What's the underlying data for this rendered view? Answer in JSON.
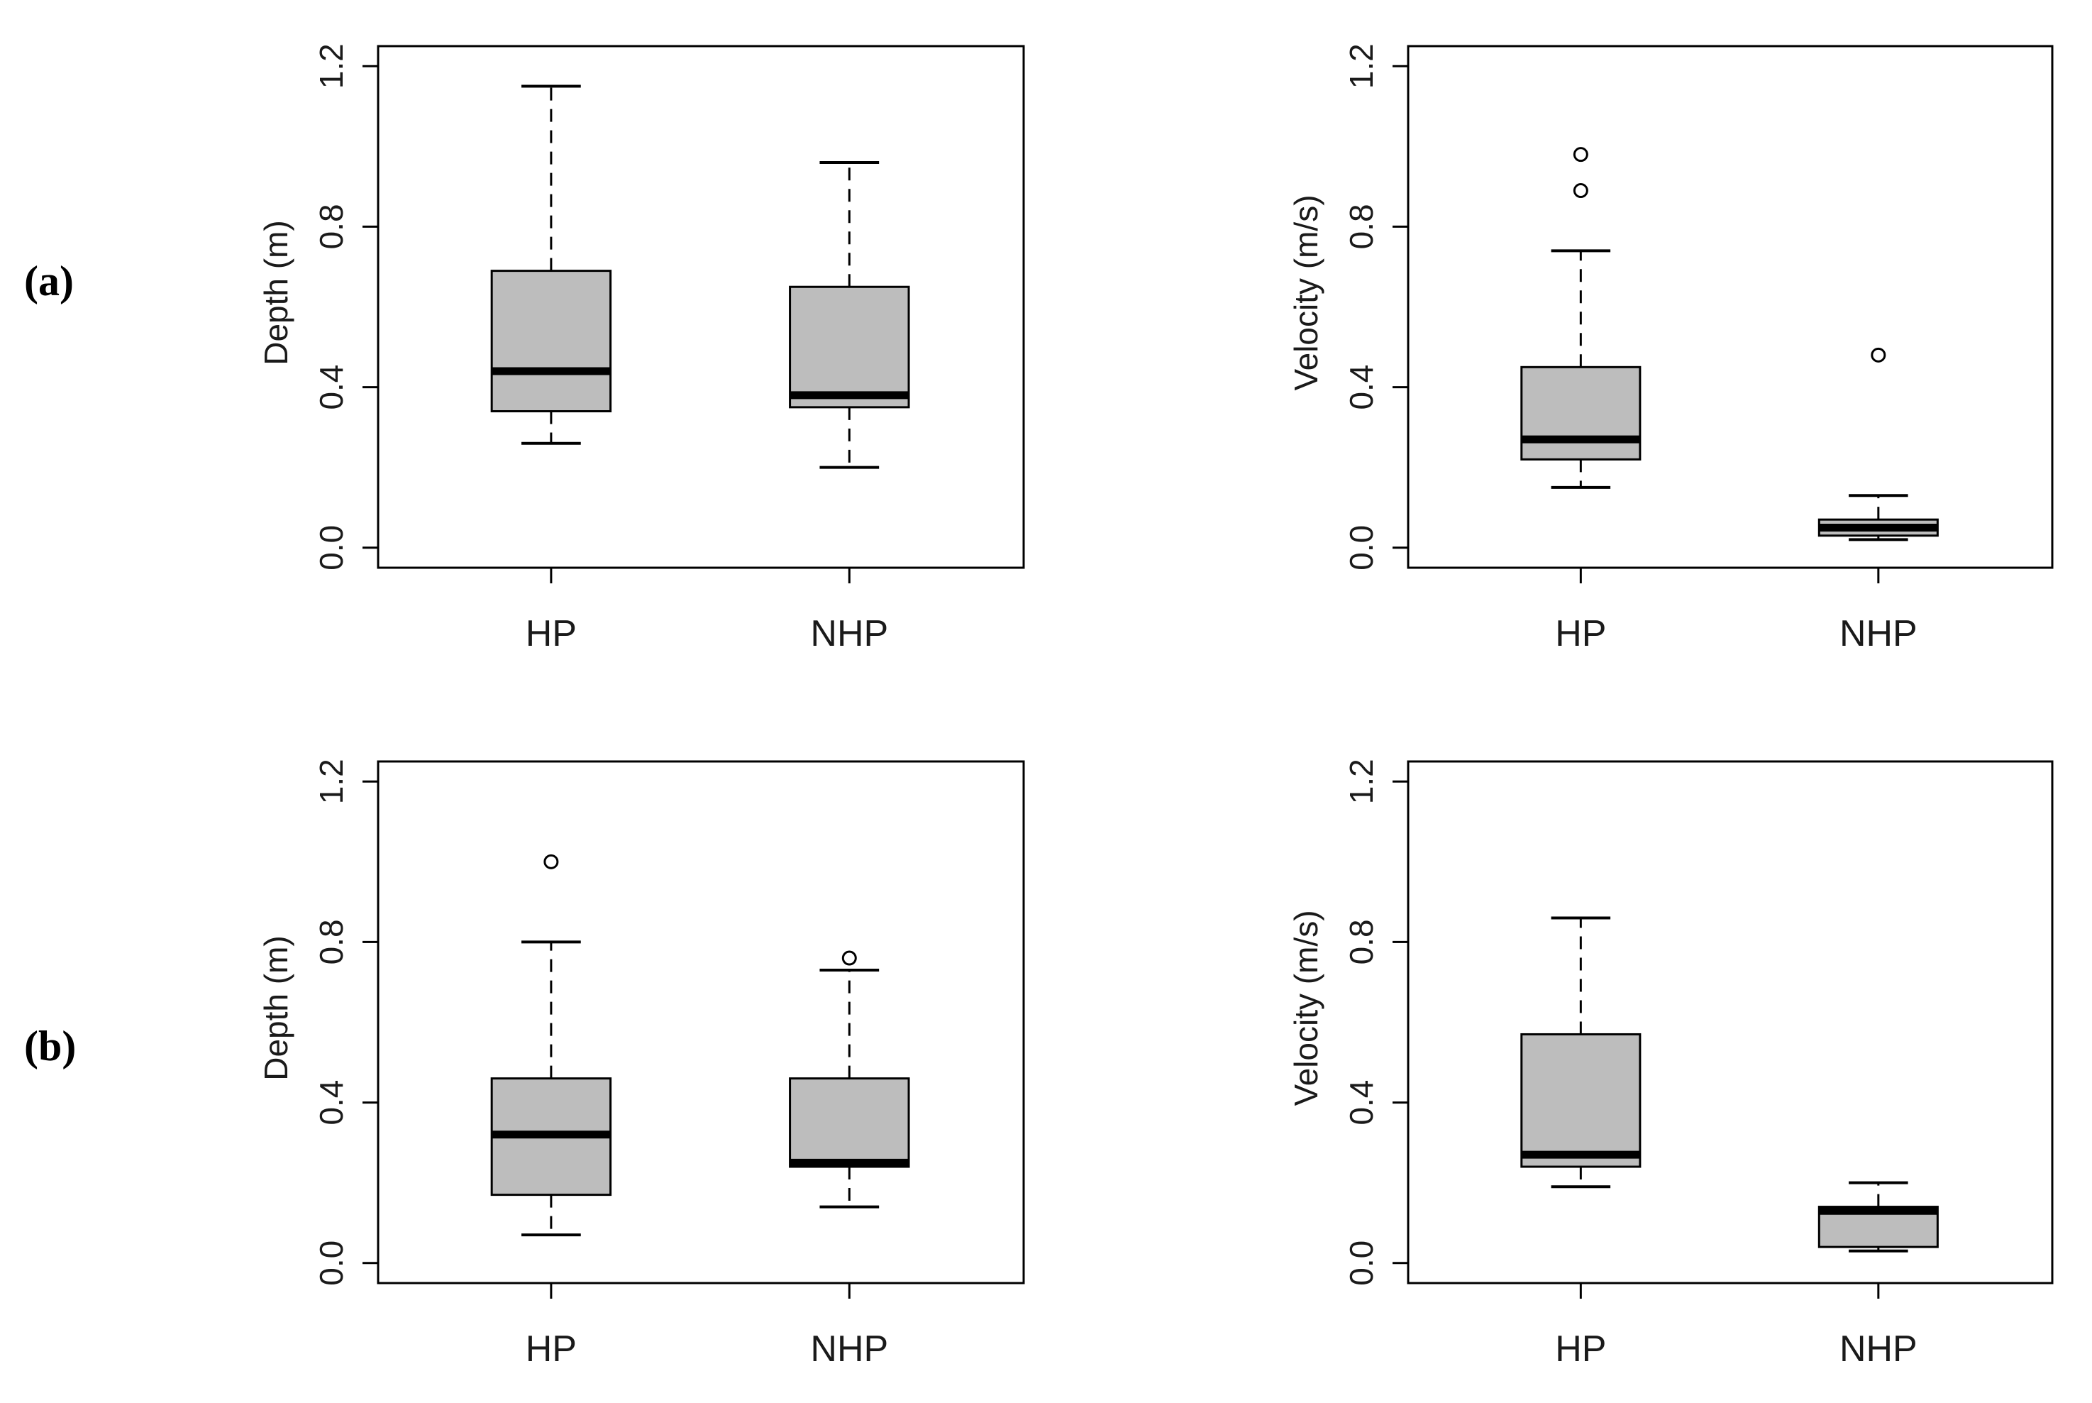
{
  "row_labels": [
    "(a)",
    "(b)"
  ],
  "chart_data": [
    {
      "type": "boxplot",
      "row": "(a)",
      "title": "",
      "xlabel": "",
      "ylabel": "Depth (m)",
      "ylim": [
        -0.05,
        1.25
      ],
      "yticks": [
        0.0,
        0.4,
        0.8,
        1.2
      ],
      "ytick_labels": [
        "0.0",
        "0.4",
        "0.8",
        "1.2"
      ],
      "categories": [
        "HP",
        "NHP"
      ],
      "boxes": [
        {
          "name": "HP",
          "whisker_low": 0.26,
          "q1": 0.34,
          "median": 0.44,
          "q3": 0.69,
          "whisker_high": 1.15,
          "outliers": []
        },
        {
          "name": "NHP",
          "whisker_low": 0.2,
          "q1": 0.35,
          "median": 0.38,
          "q3": 0.65,
          "whisker_high": 0.96,
          "outliers": []
        }
      ]
    },
    {
      "type": "boxplot",
      "row": "(a)",
      "title": "",
      "xlabel": "",
      "ylabel": "Velocity (m/s)",
      "ylim": [
        -0.05,
        1.25
      ],
      "yticks": [
        0.0,
        0.4,
        0.8,
        1.2
      ],
      "ytick_labels": [
        "0.0",
        "0.4",
        "0.8",
        "1.2"
      ],
      "categories": [
        "HP",
        "NHP"
      ],
      "boxes": [
        {
          "name": "HP",
          "whisker_low": 0.15,
          "q1": 0.22,
          "median": 0.27,
          "q3": 0.45,
          "whisker_high": 0.74,
          "outliers": [
            0.89,
            0.98
          ]
        },
        {
          "name": "NHP",
          "whisker_low": 0.02,
          "q1": 0.03,
          "median": 0.05,
          "q3": 0.07,
          "whisker_high": 0.13,
          "outliers": [
            0.48
          ]
        }
      ]
    },
    {
      "type": "boxplot",
      "row": "(b)",
      "title": "",
      "xlabel": "",
      "ylabel": "Depth (m)",
      "ylim": [
        -0.05,
        1.25
      ],
      "yticks": [
        0.0,
        0.4,
        0.8,
        1.2
      ],
      "ytick_labels": [
        "0.0",
        "0.4",
        "0.8",
        "1.2"
      ],
      "categories": [
        "HP",
        "NHP"
      ],
      "boxes": [
        {
          "name": "HP",
          "whisker_low": 0.07,
          "q1": 0.17,
          "median": 0.32,
          "q3": 0.46,
          "whisker_high": 0.8,
          "outliers": [
            1.0
          ]
        },
        {
          "name": "NHP",
          "whisker_low": 0.14,
          "q1": 0.24,
          "median": 0.25,
          "q3": 0.46,
          "whisker_high": 0.73,
          "outliers": [
            0.76
          ]
        }
      ]
    },
    {
      "type": "boxplot",
      "row": "(b)",
      "title": "",
      "xlabel": "",
      "ylabel": "Velocity (m/s)",
      "ylim": [
        -0.05,
        1.25
      ],
      "yticks": [
        0.0,
        0.4,
        0.8,
        1.2
      ],
      "ytick_labels": [
        "0.0",
        "0.4",
        "0.8",
        "1.2"
      ],
      "categories": [
        "HP",
        "NHP"
      ],
      "boxes": [
        {
          "name": "HP",
          "whisker_low": 0.19,
          "q1": 0.24,
          "median": 0.27,
          "q3": 0.57,
          "whisker_high": 0.86,
          "outliers": []
        },
        {
          "name": "NHP",
          "whisker_low": 0.03,
          "q1": 0.04,
          "median": 0.13,
          "q3": 0.14,
          "whisker_high": 0.2,
          "outliers": []
        }
      ]
    }
  ]
}
